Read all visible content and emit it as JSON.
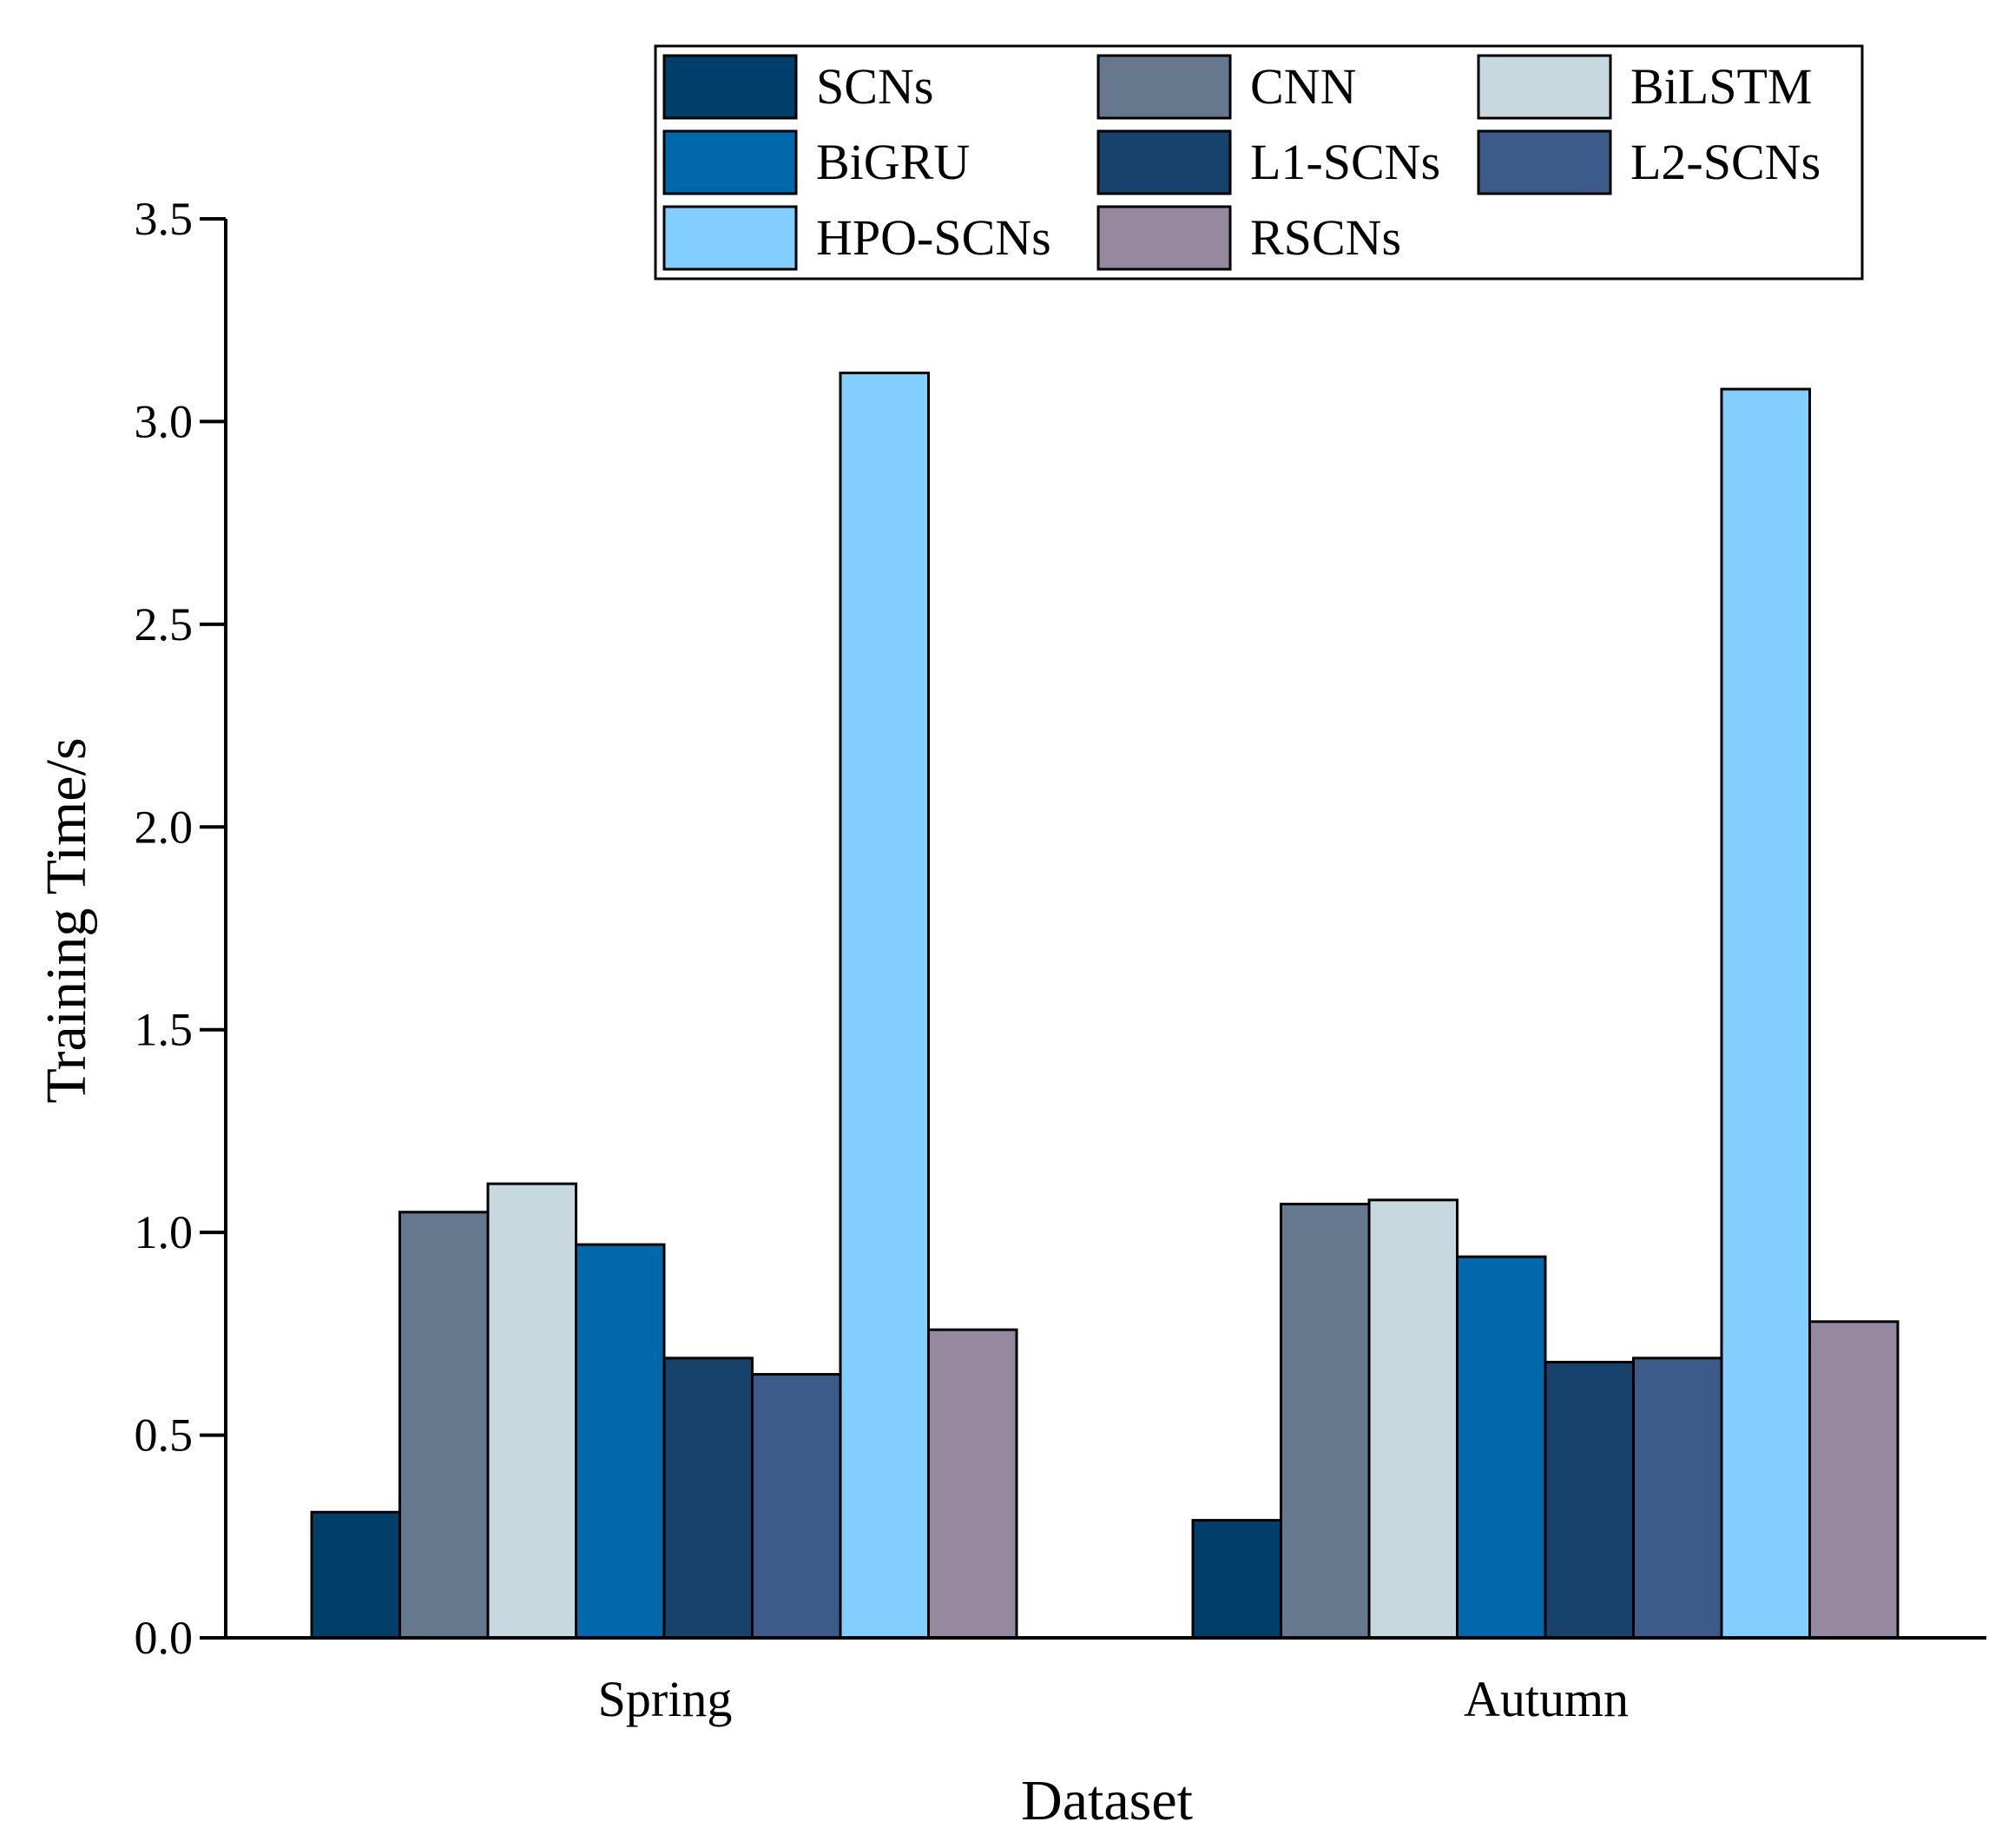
{
  "chart_data": {
    "type": "bar",
    "title": "",
    "xlabel": "Dataset",
    "ylabel": "Training Time/s",
    "ylim": [
      0,
      3.5
    ],
    "yticks": [
      "0.0",
      "0.5",
      "1.0",
      "1.5",
      "2.0",
      "2.5",
      "3.0",
      "3.5"
    ],
    "categories": [
      "Spring",
      "Autumn"
    ],
    "legend_position": "top-right",
    "series": [
      {
        "name": "SCNs",
        "color": "#023e6a",
        "values": [
          0.31,
          0.29
        ]
      },
      {
        "name": "CNN",
        "color": "#66788e",
        "values": [
          1.05,
          1.07
        ]
      },
      {
        "name": "BiLSTM",
        "color": "#c8d8df",
        "values": [
          1.12,
          1.08
        ]
      },
      {
        "name": "BiGRU",
        "color": "#0168ab",
        "values": [
          0.97,
          0.94
        ]
      },
      {
        "name": "L1-SCNs",
        "color": "#17426b",
        "values": [
          0.69,
          0.68
        ]
      },
      {
        "name": "L2-SCNs",
        "color": "#3c5b8a",
        "values": [
          0.65,
          0.69
        ]
      },
      {
        "name": "HPO-SCNs",
        "color": "#82cfff",
        "values": [
          3.12,
          3.08
        ]
      },
      {
        "name": "RSCNs",
        "color": "#95889f",
        "values": [
          0.76,
          0.78
        ]
      }
    ]
  }
}
